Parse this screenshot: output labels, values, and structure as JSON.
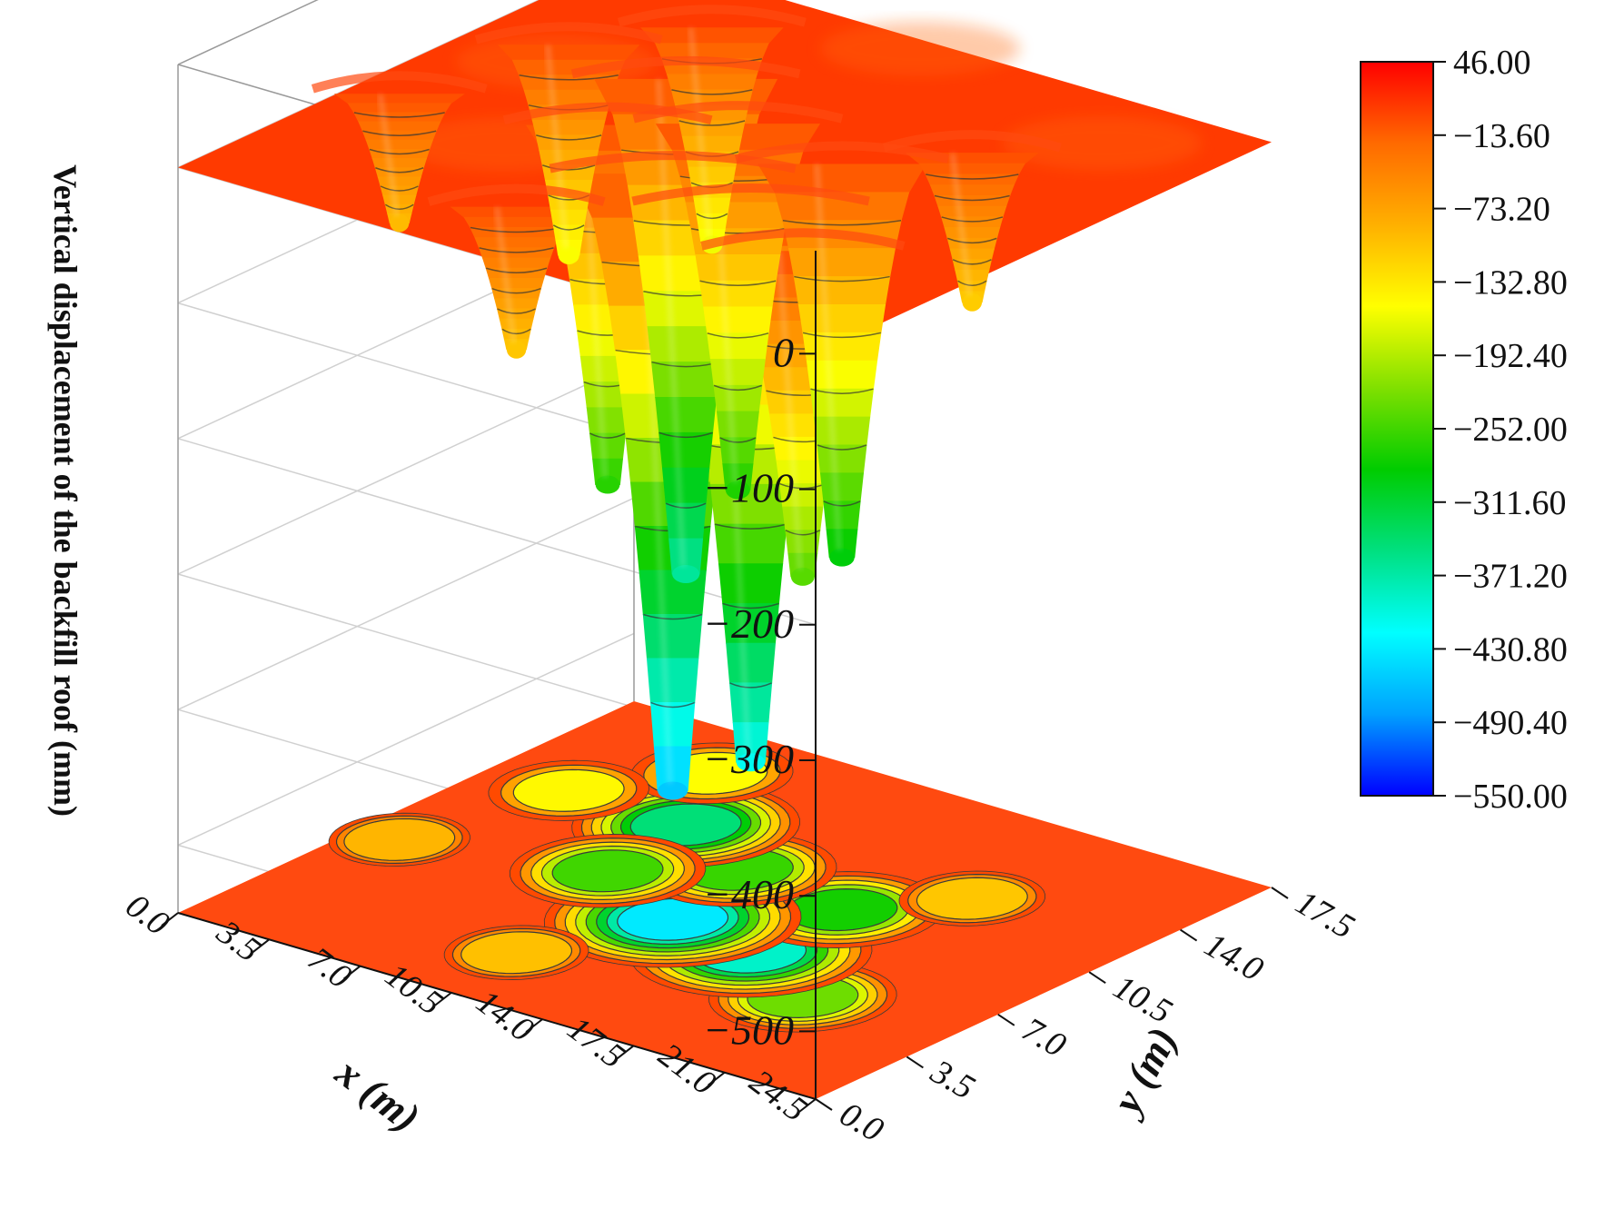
{
  "chart_data": {
    "type": "surface",
    "title": "",
    "zlabel": "Vertical displacement of the backfill roof (mm)",
    "xlabel": "x (m)",
    "ylabel": "y (m)",
    "x_ticks": [
      "0.0",
      "3.5",
      "7.0",
      "10.5",
      "14.0",
      "17.5",
      "21.0",
      "24.5"
    ],
    "y_ticks": [
      "0.0",
      "3.5",
      "7.0",
      "10.5",
      "14.0",
      "17.5"
    ],
    "z_ticks": [
      "0",
      "-100",
      "-200",
      "-300",
      "-400",
      "-500"
    ],
    "x_range": [
      0,
      24.5
    ],
    "y_range": [
      0,
      17.5
    ],
    "z_range": [
      -550,
      46
    ],
    "colorbar": {
      "min": -550,
      "max": 46,
      "labels": [
        "46.00",
        "−13.60",
        "−73.20",
        "−132.80",
        "−192.40",
        "−252.00",
        "−311.60",
        "−371.20",
        "−430.80",
        "−490.40",
        "−550.00"
      ],
      "colormap": [
        "#0000ff",
        "#00a0ff",
        "#00ffff",
        "#00e080",
        "#00cc00",
        "#80e000",
        "#ffff00",
        "#ffb000",
        "#ff6a00",
        "#ff0000"
      ]
    },
    "surface_color_top": "#ff3a00",
    "floor_color": "#ff4a10",
    "grid": true,
    "contours": true,
    "depressions": [
      {
        "x": 5.5,
        "y": 5.0,
        "z": -240
      },
      {
        "x": 9.0,
        "y": 6.5,
        "z": -410
      },
      {
        "x": 9.0,
        "y": 10.0,
        "z": -290
      },
      {
        "x": 12.5,
        "y": 7.0,
        "z": -455
      },
      {
        "x": 13.5,
        "y": 10.5,
        "z": -270
      },
      {
        "x": 17.0,
        "y": 12.0,
        "z": -365
      },
      {
        "x": 16.5,
        "y": 8.5,
        "z": -265
      },
      {
        "x": 19.0,
        "y": 15.0,
        "z": -160
      },
      {
        "x": 21.5,
        "y": 12.0,
        "z": -155
      },
      {
        "x": 6.5,
        "y": 12.5,
        "z": -110
      },
      {
        "x": 14.5,
        "y": 3.0,
        "z": -105
      },
      {
        "x": 23.0,
        "y": 7.0,
        "z": -95
      }
    ]
  }
}
